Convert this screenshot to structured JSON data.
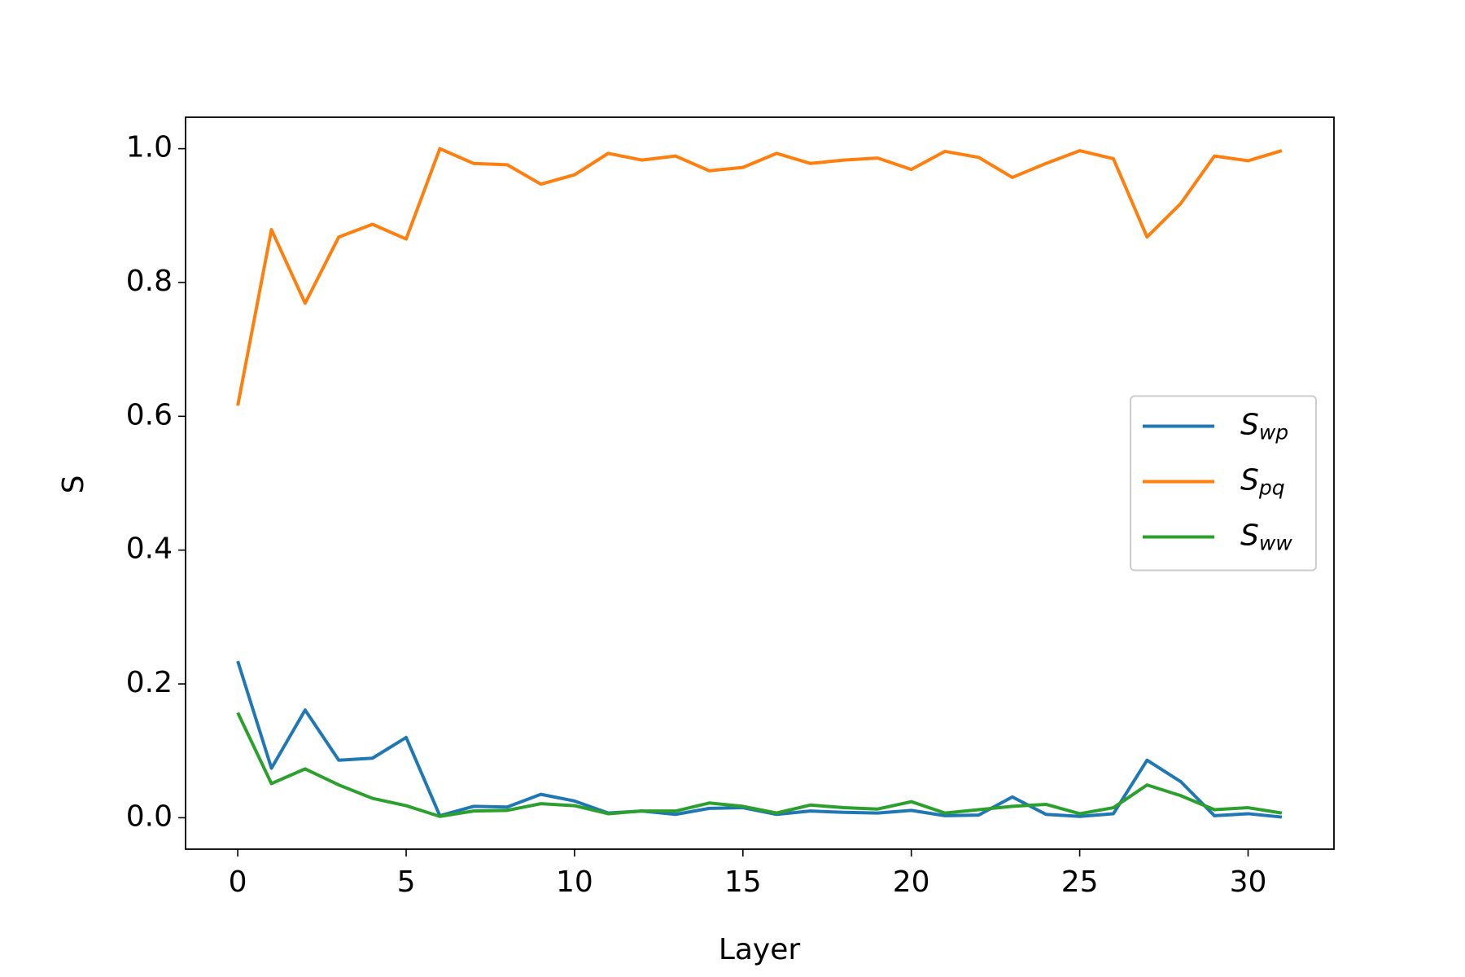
{
  "chart_data": {
    "type": "line",
    "x_label": "Layer",
    "y_label": "S",
    "x": [
      0,
      1,
      2,
      3,
      4,
      5,
      6,
      7,
      8,
      9,
      10,
      11,
      12,
      13,
      14,
      15,
      16,
      17,
      18,
      19,
      20,
      21,
      22,
      23,
      24,
      25,
      26,
      27,
      28,
      29,
      30,
      31
    ],
    "series": [
      {
        "name": "Swp",
        "color": "#1f77b4",
        "values": [
          0.234,
          0.074,
          0.161,
          0.086,
          0.089,
          0.12,
          0.003,
          0.017,
          0.016,
          0.035,
          0.025,
          0.007,
          0.01,
          0.005,
          0.014,
          0.015,
          0.005,
          0.01,
          0.008,
          0.007,
          0.011,
          0.003,
          0.004,
          0.031,
          0.005,
          0.002,
          0.006,
          0.086,
          0.054,
          0.003,
          0.006,
          0.001
        ]
      },
      {
        "name": "Spq",
        "color": "#ff7f0e",
        "values": [
          0.616,
          0.879,
          0.769,
          0.868,
          0.887,
          0.865,
          1.0,
          0.978,
          0.976,
          0.947,
          0.961,
          0.993,
          0.983,
          0.989,
          0.967,
          0.972,
          0.993,
          0.978,
          0.983,
          0.986,
          0.969,
          0.996,
          0.987,
          0.957,
          0.978,
          0.997,
          0.985,
          0.868,
          0.918,
          0.989,
          0.982,
          0.997
        ]
      },
      {
        "name": "Sww",
        "color": "#2ca02c",
        "values": [
          0.157,
          0.051,
          0.073,
          0.049,
          0.029,
          0.018,
          0.002,
          0.01,
          0.011,
          0.021,
          0.018,
          0.006,
          0.01,
          0.01,
          0.022,
          0.017,
          0.007,
          0.019,
          0.015,
          0.013,
          0.024,
          0.007,
          0.012,
          0.017,
          0.02,
          0.006,
          0.015,
          0.049,
          0.033,
          0.012,
          0.015,
          0.007
        ]
      }
    ],
    "xlim": [
      -1.55,
      32.55
    ],
    "xticks": [
      0,
      5,
      10,
      15,
      20,
      25,
      30
    ],
    "ylim": [
      -0.047,
      1.047
    ],
    "yticks": [
      {
        "value": 0,
        "label": "0.0"
      },
      0.2,
      0.4,
      0.6,
      0.8,
      {
        "value": 1,
        "label": "1.0"
      }
    ],
    "grid": false,
    "legend": "center right"
  }
}
